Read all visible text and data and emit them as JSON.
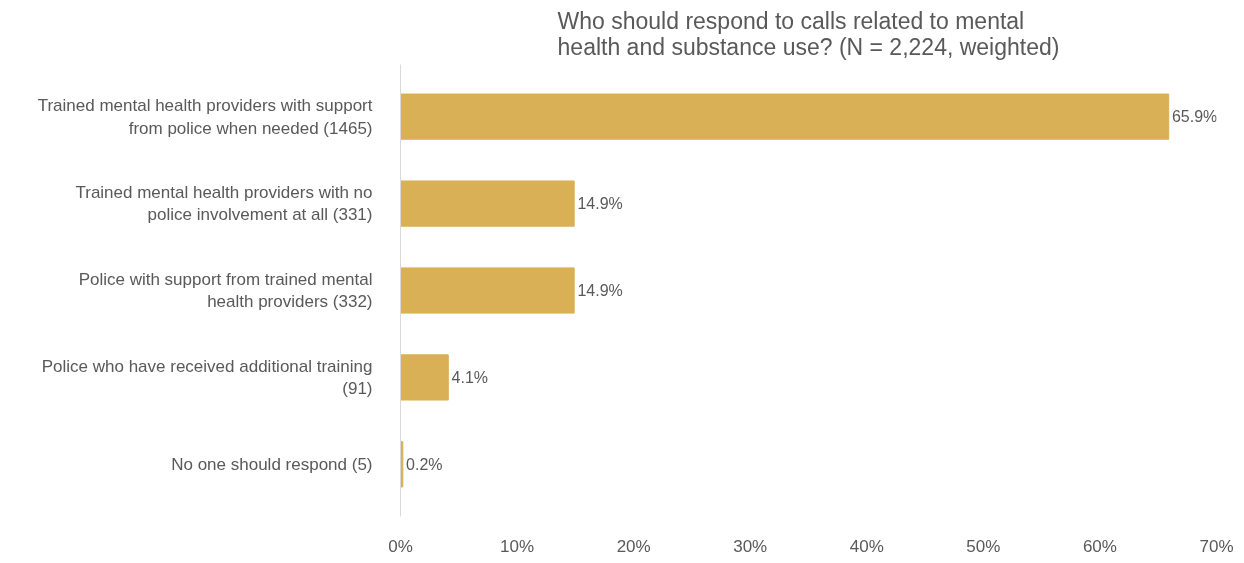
{
  "chart_data": {
    "type": "bar",
    "orientation": "horizontal",
    "title": "Who should respond to calls related to mental health and substance use? (N = 2,224, weighted)",
    "categories": [
      "Trained mental health providers with support from police when needed (1465)",
      "Trained mental health providers with no police involvement at all (331)",
      "Police with support from trained mental health providers (332)",
      "Police who have received additional training (91)",
      "No one should respond (5)"
    ],
    "values": [
      65.9,
      14.9,
      14.9,
      4.1,
      0.2
    ],
    "value_labels": [
      "65.9%",
      "14.9%",
      "14.9%",
      "4.1%",
      "0.2%"
    ],
    "color": "#d9b055",
    "xlim": [
      0,
      70
    ],
    "xticks": [
      {
        "value": 0,
        "label": "0%"
      },
      {
        "value": 10,
        "label": "10%"
      },
      {
        "value": 20,
        "label": "20%"
      },
      {
        "value": 30,
        "label": "30%"
      },
      {
        "value": 40,
        "label": "40%"
      },
      {
        "value": 50,
        "label": "50%"
      },
      {
        "value": 60,
        "label": "60%"
      },
      {
        "value": 70,
        "label": "70%"
      }
    ],
    "grid": false
  }
}
